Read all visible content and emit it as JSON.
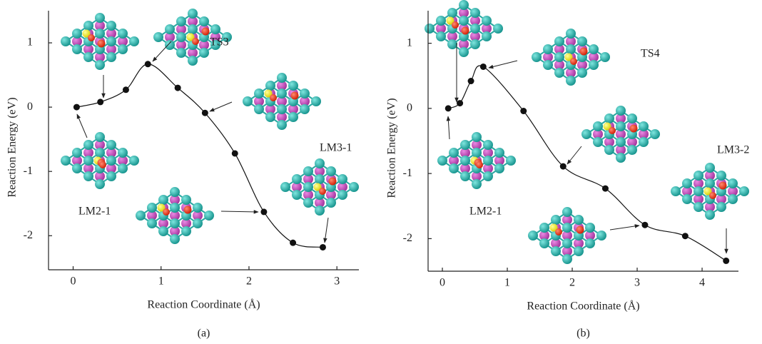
{
  "chart_data": [
    {
      "type": "line",
      "panel_label": "(a)",
      "xlabel": "Reaction Coordinate (Å)",
      "ylabel": "Reaction Energy (eV)",
      "x": [
        0.04,
        0.31,
        0.6,
        0.85,
        1.19,
        1.5,
        1.84,
        2.17,
        2.5,
        2.84
      ],
      "values": [
        0,
        0.08,
        0.27,
        0.67,
        0.3,
        -0.09,
        -0.72,
        -1.63,
        -2.11,
        -2.18
      ],
      "xlim": [
        -0.28,
        3.25
      ],
      "ylim": [
        -2.53,
        1.5
      ],
      "xticks": [
        0,
        1,
        2,
        3
      ],
      "yticks": [
        -2,
        -1,
        0,
        1
      ],
      "annotations": [
        "TS3",
        "LM3-1",
        "LM2-1"
      ],
      "color": "#111111"
    },
    {
      "type": "line",
      "panel_label": "(b)",
      "xlabel": "Reaction Coordinate (Å)",
      "ylabel": "Reaction Energy (eV)",
      "x": [
        0.09,
        0.27,
        0.44,
        0.63,
        1.25,
        1.86,
        2.51,
        3.12,
        3.74,
        4.37
      ],
      "values": [
        0,
        0.08,
        0.42,
        0.64,
        -0.04,
        -0.89,
        -1.23,
        -1.79,
        -1.96,
        -2.34
      ],
      "xlim": [
        -0.22,
        4.56
      ],
      "ylim": [
        -2.5,
        1.5
      ],
      "xticks": [
        0,
        1,
        2,
        3,
        4
      ],
      "yticks": [
        -2,
        -1,
        0,
        1
      ],
      "annotations": [
        "TS4",
        "LM3-2",
        "LM2-1"
      ],
      "color": "#111111"
    }
  ]
}
